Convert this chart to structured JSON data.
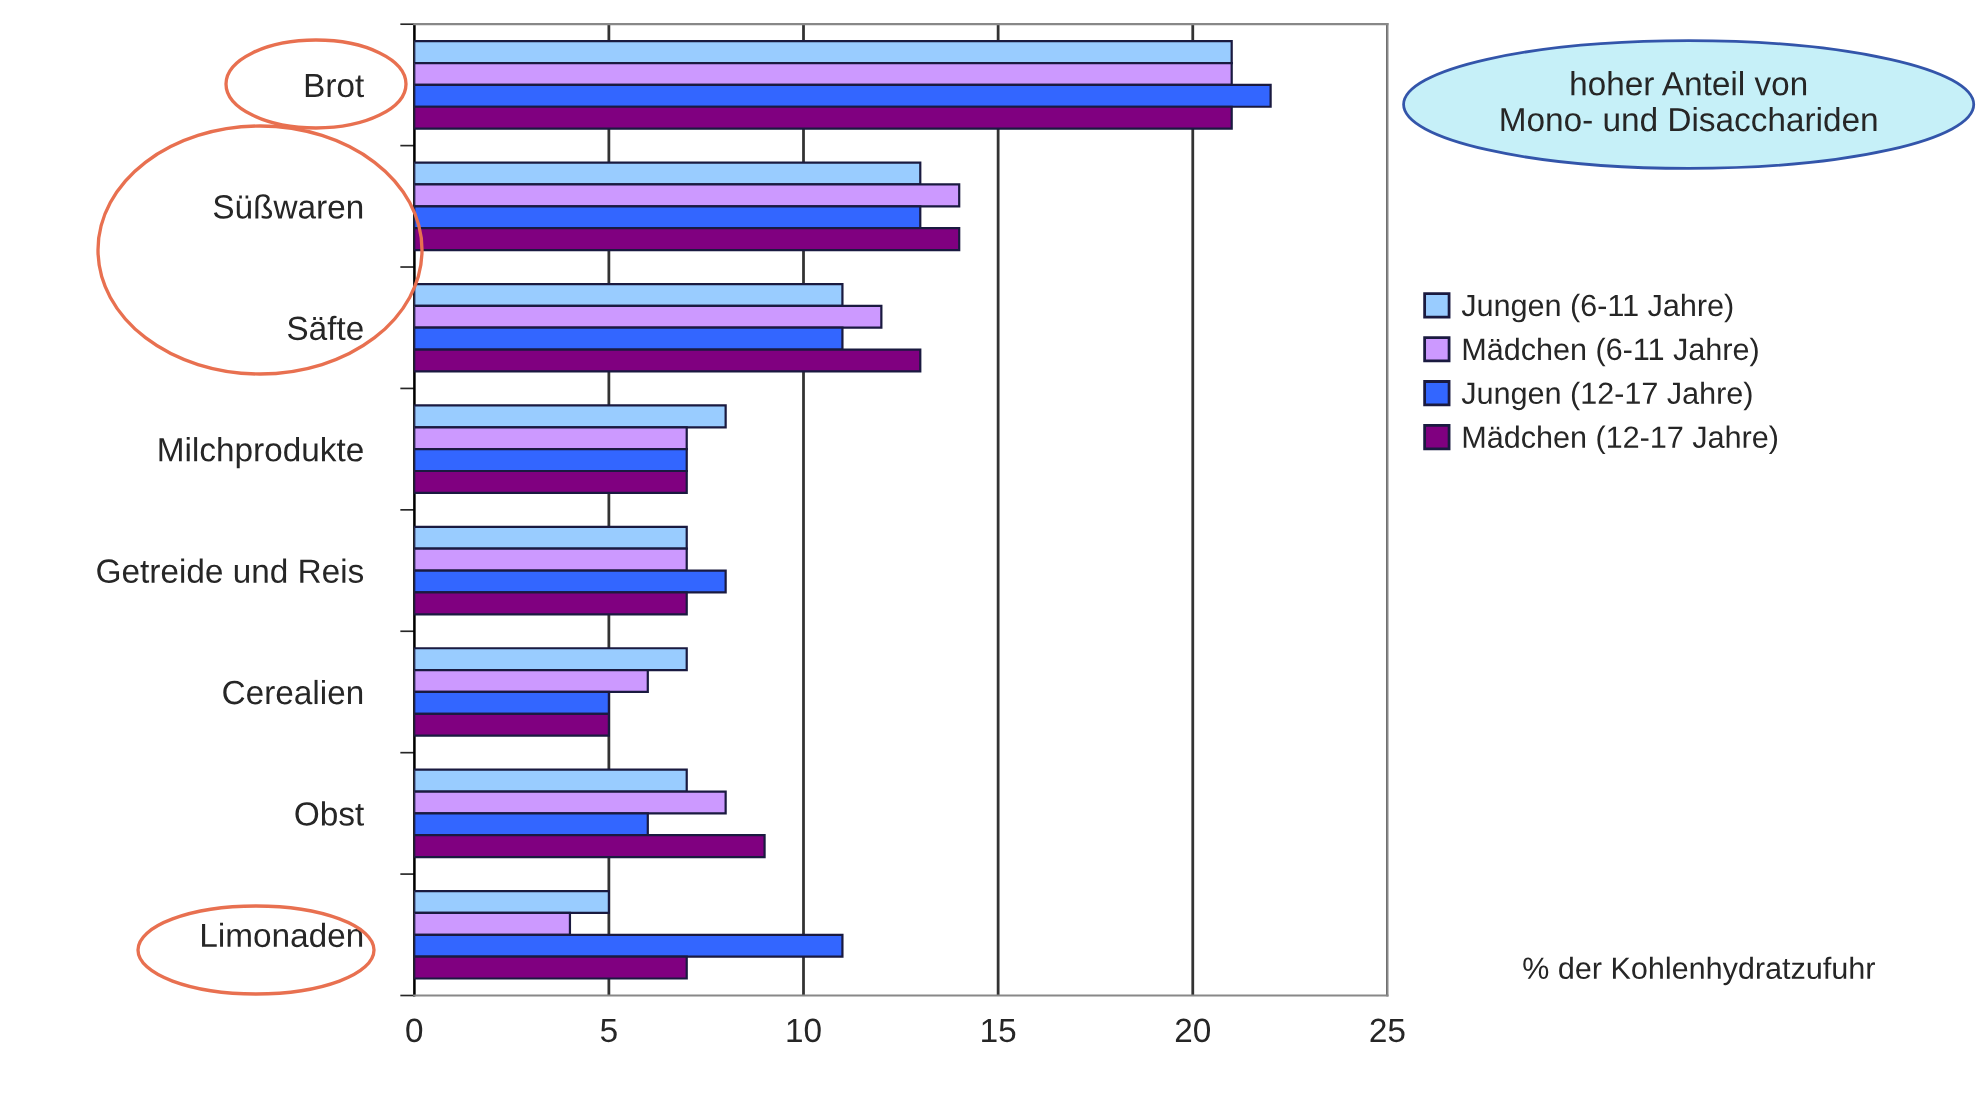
{
  "chart_data": {
    "type": "bar",
    "orientation": "horizontal",
    "categories": [
      "Brot",
      "Süßwaren",
      "Säfte",
      "Milchprodukte",
      "Getreide und Reis",
      "Cerealien",
      "Obst",
      "Limonaden"
    ],
    "series": [
      {
        "name": "Jungen (6-11 Jahre)",
        "color": "#99ccff",
        "values": [
          21,
          13,
          11,
          8,
          7,
          7,
          7,
          5
        ]
      },
      {
        "name": "Mädchen (6-11 Jahre)",
        "color": "#cc99ff",
        "values": [
          21,
          14,
          12,
          7,
          7,
          6,
          8,
          4
        ]
      },
      {
        "name": "Jungen (12-17 Jahre)",
        "color": "#3366ff",
        "values": [
          22,
          13,
          11,
          7,
          8,
          5,
          6,
          11
        ]
      },
      {
        "name": "Mädchen (12-17 Jahre)",
        "color": "#800080",
        "values": [
          21,
          14,
          13,
          7,
          7,
          5,
          9,
          7
        ]
      }
    ],
    "xlim": [
      0,
      25
    ],
    "xticks": [
      0,
      5,
      10,
      15,
      20,
      25
    ],
    "xlabel": "% der Kohlenhydratzufuhr",
    "annotations": [
      "hoher Anteil von\nMono- und Disacchariden"
    ],
    "grid": "x",
    "legend": "right"
  }
}
